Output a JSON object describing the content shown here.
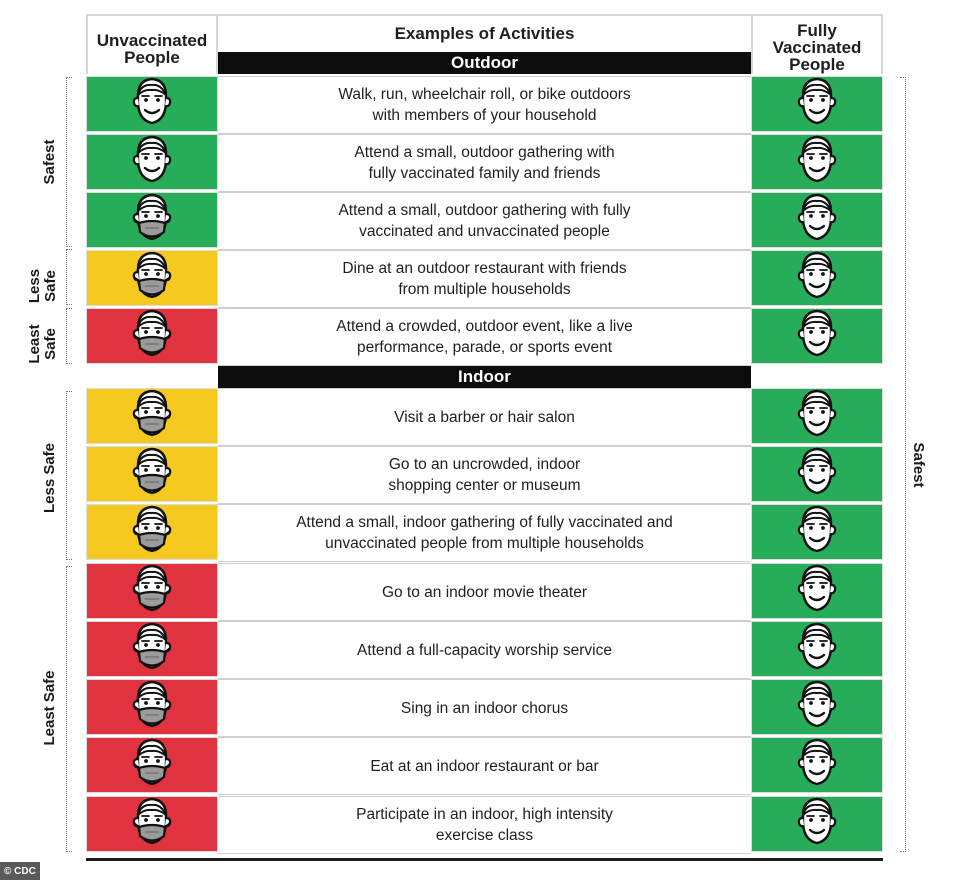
{
  "header": {
    "unvaccinated": "Unvaccinated People",
    "activities": "Examples of Activities",
    "vaccinated": "Fully Vaccinated People"
  },
  "sections": {
    "outdoor": "Outdoor",
    "indoor": "Indoor"
  },
  "colors": {
    "green": "#27ad5a",
    "yellow": "#f5c91f",
    "red": "#e1333f"
  },
  "rows": [
    {
      "activity": "Walk, run, wheelchair roll, or bike outdoors\nwith members of your household",
      "unvax_color": "green",
      "unvax_mask": false,
      "vax_color": "green"
    },
    {
      "activity": "Attend a small, outdoor gathering with\nfully vaccinated family and friends",
      "unvax_color": "green",
      "unvax_mask": false,
      "vax_color": "green"
    },
    {
      "activity": "Attend a small, outdoor gathering with fully\nvaccinated and unvaccinated people",
      "unvax_color": "green",
      "unvax_mask": true,
      "vax_color": "green"
    },
    {
      "activity": "Dine at an outdoor restaurant with friends\nfrom multiple households",
      "unvax_color": "yellow",
      "unvax_mask": true,
      "vax_color": "green"
    },
    {
      "activity": "Attend a crowded, outdoor event, like a live\nperformance, parade, or sports event",
      "unvax_color": "red",
      "unvax_mask": true,
      "vax_color": "green"
    },
    {
      "activity": "Visit a barber or hair salon",
      "unvax_color": "yellow",
      "unvax_mask": true,
      "vax_color": "green"
    },
    {
      "activity": "Go to an uncrowded, indoor\nshopping center or museum",
      "unvax_color": "yellow",
      "unvax_mask": true,
      "vax_color": "green"
    },
    {
      "activity": "Attend a small, indoor gathering of fully vaccinated and\nunvaccinated people from multiple households",
      "unvax_color": "yellow",
      "unvax_mask": true,
      "vax_color": "green"
    },
    {
      "activity": "Go to an indoor movie theater",
      "unvax_color": "red",
      "unvax_mask": true,
      "vax_color": "green"
    },
    {
      "activity": "Attend a full-capacity worship service",
      "unvax_color": "red",
      "unvax_mask": true,
      "vax_color": "green"
    },
    {
      "activity": "Sing in an indoor chorus",
      "unvax_color": "red",
      "unvax_mask": true,
      "vax_color": "green"
    },
    {
      "activity": "Eat at an indoor restaurant or bar",
      "unvax_color": "red",
      "unvax_mask": true,
      "vax_color": "green"
    },
    {
      "activity": "Participate in an indoor, high intensity\nexercise class",
      "unvax_color": "red",
      "unvax_mask": true,
      "vax_color": "green"
    }
  ],
  "side_labels": {
    "outdoor_safest": "Safest",
    "outdoor_less_safe": "Less Safe",
    "outdoor_least_safe": "Least Safe",
    "indoor_less_safe": "Less Safe",
    "indoor_least_safe": "Least Safe",
    "vaccinated_safest": "Safest"
  },
  "credit": "© CDC"
}
